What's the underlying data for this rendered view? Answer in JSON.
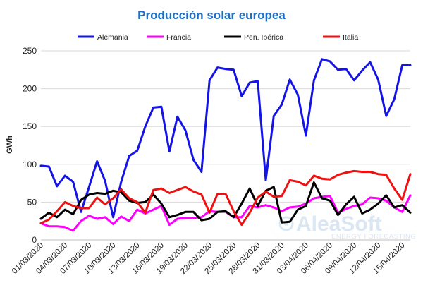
{
  "chart_data": {
    "type": "line",
    "title": "Producción solar europea",
    "ylabel": "GWh",
    "ylim": [
      0,
      250
    ],
    "yticks": [
      0,
      50,
      100,
      150,
      200,
      250
    ],
    "grid": true,
    "legend_position": "top",
    "x_tick_labels": [
      "01/03/2020",
      "04/03/2020",
      "07/03/2020",
      "10/03/2020",
      "13/03/2020",
      "16/03/2020",
      "19/03/2020",
      "22/03/2020",
      "25/03/2020",
      "28/03/2020",
      "31/03/2020",
      "03/04/2020",
      "06/04/2020",
      "09/04/2020",
      "12/04/2020",
      "15/04/2020"
    ],
    "x": [
      "01/03/2020",
      "02/03/2020",
      "03/03/2020",
      "04/03/2020",
      "05/03/2020",
      "06/03/2020",
      "07/03/2020",
      "08/03/2020",
      "09/03/2020",
      "10/03/2020",
      "11/03/2020",
      "12/03/2020",
      "13/03/2020",
      "14/03/2020",
      "15/03/2020",
      "16/03/2020",
      "17/03/2020",
      "18/03/2020",
      "19/03/2020",
      "20/03/2020",
      "21/03/2020",
      "22/03/2020",
      "23/03/2020",
      "24/03/2020",
      "25/03/2020",
      "26/03/2020",
      "27/03/2020",
      "28/03/2020",
      "29/03/2020",
      "30/03/2020",
      "31/03/2020",
      "01/04/2020",
      "02/04/2020",
      "03/04/2020",
      "04/04/2020",
      "05/04/2020",
      "06/04/2020",
      "07/04/2020",
      "08/04/2020",
      "09/04/2020",
      "10/04/2020",
      "11/04/2020",
      "12/04/2020",
      "13/04/2020",
      "14/04/2020",
      "15/04/2020",
      "16/04/2020"
    ],
    "series": [
      {
        "name": "Alemania",
        "color": "#1414e6",
        "values": [
          98,
          97,
          71,
          85,
          77,
          37,
          70,
          104,
          78,
          30,
          77,
          111,
          118,
          150,
          175,
          176,
          117,
          163,
          145,
          106,
          90,
          211,
          228,
          226,
          225,
          190,
          208,
          210,
          79,
          164,
          179,
          212,
          192,
          138,
          211,
          239,
          236,
          225,
          226,
          211,
          224,
          235,
          212,
          164,
          186,
          231,
          231
        ]
      },
      {
        "name": "Francia",
        "color": "#ff00ff",
        "values": [
          22,
          18,
          18,
          17,
          12,
          25,
          32,
          28,
          30,
          21,
          31,
          25,
          40,
          35,
          40,
          45,
          20,
          28,
          29,
          29,
          30,
          38,
          37,
          37,
          30,
          30,
          45,
          43,
          46,
          43,
          38,
          43,
          44,
          48,
          55,
          57,
          58,
          36,
          41,
          45,
          47,
          56,
          55,
          52,
          43,
          37,
          59
        ]
      },
      {
        "name": "Pen. Ibérica",
        "color": "#000000",
        "values": [
          28,
          36,
          30,
          40,
          34,
          53,
          60,
          62,
          61,
          65,
          63,
          52,
          49,
          50,
          60,
          48,
          30,
          33,
          37,
          37,
          26,
          28,
          37,
          38,
          30,
          48,
          68,
          45,
          65,
          70,
          23,
          24,
          40,
          45,
          76,
          55,
          52,
          33,
          47,
          57,
          35,
          40,
          48,
          59,
          43,
          46,
          36
        ]
      },
      {
        "name": "Italia",
        "color": "#ee1111",
        "values": [
          22,
          27,
          38,
          50,
          45,
          42,
          42,
          56,
          47,
          55,
          67,
          55,
          50,
          36,
          66,
          68,
          62,
          66,
          70,
          64,
          60,
          36,
          61,
          61,
          38,
          20,
          36,
          56,
          64,
          57,
          58,
          79,
          77,
          72,
          85,
          81,
          80,
          86,
          89,
          91,
          90,
          90,
          87,
          86,
          68,
          53,
          87
        ]
      }
    ]
  },
  "watermark": {
    "brand": "AleaSoft",
    "tagline": "ENERGY FORECASTING"
  }
}
